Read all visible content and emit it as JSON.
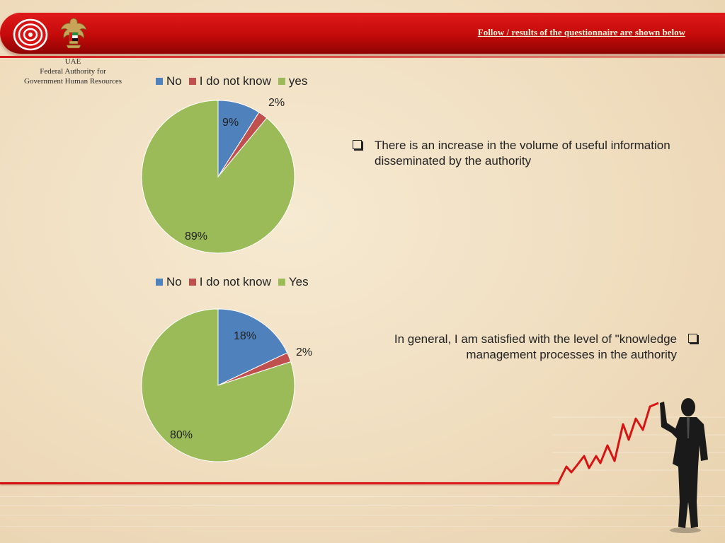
{
  "header": {
    "title": "Follow / results of the questionnaire are shown below"
  },
  "org": {
    "line1": "UAE",
    "line2": "Federal Authority for",
    "line3": "Government Human Resources"
  },
  "colors": {
    "no": "#4f81bd",
    "dont_know": "#c0504d",
    "yes": "#9bbb59",
    "accent_red": "#c40a0a"
  },
  "chart_data": [
    {
      "type": "pie",
      "legend": [
        "No",
        "I do not know",
        "yes"
      ],
      "slices": [
        {
          "label": "No",
          "value": 9,
          "display": "9%"
        },
        {
          "label": "I do not know",
          "value": 2,
          "display": "2%"
        },
        {
          "label": "yes",
          "value": 89,
          "display": "89%"
        }
      ],
      "legend_position": "top"
    },
    {
      "type": "pie",
      "legend": [
        "No",
        "I do not know",
        "Yes"
      ],
      "slices": [
        {
          "label": "No",
          "value": 18,
          "display": "18%"
        },
        {
          "label": "I do not know",
          "value": 2,
          "display": "2%"
        },
        {
          "label": "Yes",
          "value": 80,
          "display": "80%"
        }
      ],
      "legend_position": "top"
    }
  ],
  "statements": {
    "first": "There is an increase in the volume of useful information disseminated by the authority",
    "second_line1": "In general, I am satisfied with the level of \"knowledge",
    "second_line2": "management processes in the authority"
  },
  "icons": {
    "checkbox": "checkbox-icon",
    "target": "target-emblem-icon",
    "eagle": "eagle-emblem-icon",
    "businessman": "businessman-silhouette-icon",
    "trend": "trend-line-icon"
  }
}
